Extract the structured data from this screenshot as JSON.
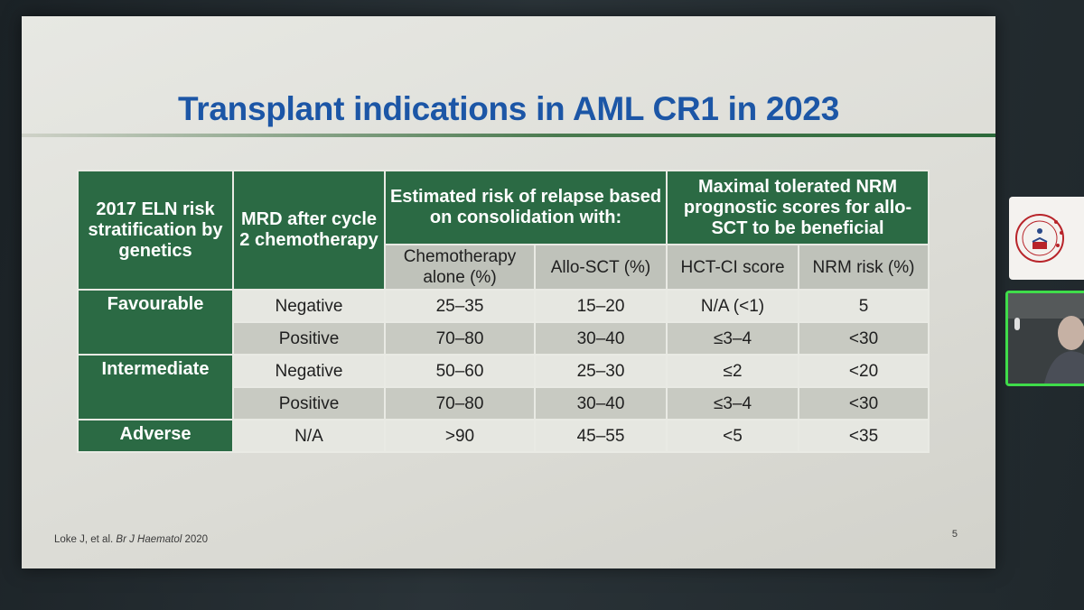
{
  "slide": {
    "title": "Transplant indications in AML CR1 in 2023",
    "page_number": "5",
    "reference": {
      "authors": "Loke J, et al.",
      "journal": "Br J Haematol",
      "year": "2020"
    }
  },
  "table": {
    "headers": {
      "risk": "2017 ELN risk stratification by genetics",
      "mrd": "MRD after cycle 2 chemotherapy",
      "relapse_group": "Estimated risk of relapse based on consolidation with:",
      "nrm_group": "Maximal tolerated NRM prognostic scores for allo-SCT to be beneficial",
      "chemo": "Chemotherapy alone (%)",
      "allo": "Allo-SCT (%)",
      "hctci": "HCT-CI score",
      "nrm": "NRM risk (%)"
    },
    "risk_groups": {
      "favourable": "Favourable",
      "intermediate": "Intermediate",
      "adverse": "Adverse"
    },
    "rows": [
      {
        "mrd": "Negative",
        "chemo": "25–35",
        "allo": "15–20",
        "hctci": "N/A (<1)",
        "nrm": "5"
      },
      {
        "mrd": "Positive",
        "chemo": "70–80",
        "allo": "30–40",
        "hctci": "≤3–4",
        "nrm": "<30"
      },
      {
        "mrd": "Negative",
        "chemo": "50–60",
        "allo": "25–30",
        "hctci": "≤2",
        "nrm": "<20"
      },
      {
        "mrd": "Positive",
        "chemo": "70–80",
        "allo": "30–40",
        "hctci": "≤3–4",
        "nrm": "<30"
      },
      {
        "mrd": "N/A",
        "chemo": ">90",
        "allo": "45–55",
        "hctci": "<5",
        "nrm": "<35"
      }
    ]
  },
  "participants": {
    "logo_tile": "organization-logo",
    "camera_tile": "participant-video"
  }
}
